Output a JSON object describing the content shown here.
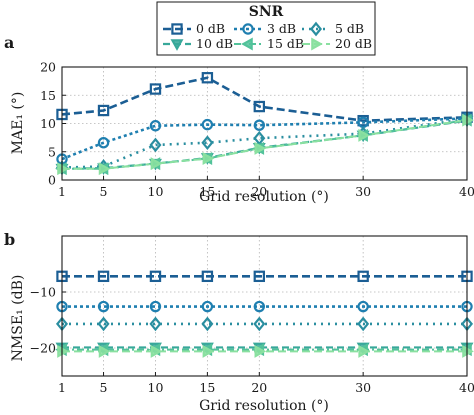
{
  "legend": {
    "title": "SNR",
    "colors": [
      "#1b5e94",
      "#1f7fb0",
      "#2a8ea0",
      "#38a89a",
      "#52c29a",
      "#8ae0a0"
    ],
    "markers": [
      "square",
      "circle",
      "diamond",
      "triangle-down",
      "triangle-left",
      "triangle-right"
    ]
  },
  "chart_data": [
    {
      "type": "line",
      "panel_label": "a",
      "ylabel": "MAE₁ (°)",
      "xlabel": "Grid resolution (°)",
      "x": [
        1,
        5,
        10,
        15,
        20,
        30,
        40
      ],
      "xticks": [
        "1",
        "5",
        "10",
        "15",
        "20",
        "30",
        "40"
      ],
      "ylim": [
        0,
        20
      ],
      "yticks": [
        0,
        5,
        10,
        15,
        20
      ],
      "ytick_labels": [
        "0",
        "5",
        "10",
        "15",
        "20"
      ],
      "grid": true,
      "series": [
        {
          "name": "0 dB",
          "values": [
            11.6,
            12.3,
            16.1,
            18.1,
            13.0,
            10.5,
            11.1
          ]
        },
        {
          "name": "3 dB",
          "values": [
            3.7,
            6.6,
            9.6,
            9.8,
            9.7,
            10.2,
            10.9
          ]
        },
        {
          "name": "5 dB",
          "values": [
            2.2,
            2.4,
            6.2,
            6.6,
            7.4,
            8.2,
            10.8
          ]
        },
        {
          "name": "10 dB",
          "values": [
            2.0,
            2.1,
            2.9,
            3.9,
            5.7,
            7.9,
            10.5
          ]
        },
        {
          "name": "15 dB",
          "values": [
            2.0,
            2.0,
            2.9,
            3.8,
            5.6,
            7.9,
            10.6
          ]
        },
        {
          "name": "20 dB",
          "values": [
            2.0,
            2.0,
            2.9,
            3.8,
            5.6,
            7.9,
            10.6
          ]
        }
      ]
    },
    {
      "type": "line",
      "panel_label": "b",
      "ylabel": "NMSE₁ (dB)",
      "xlabel": "Grid resolution (°)",
      "x": [
        1,
        5,
        10,
        15,
        20,
        30,
        40
      ],
      "xticks": [
        "1",
        "5",
        "10",
        "15",
        "20",
        "30",
        "40"
      ],
      "ylim": [
        -25,
        0
      ],
      "yticks": [
        -10,
        -20
      ],
      "ytick_labels": [
        "−10",
        "−20"
      ],
      "grid": true,
      "series": [
        {
          "name": "0 dB",
          "values": [
            -7.2,
            -7.2,
            -7.2,
            -7.2,
            -7.2,
            -7.2,
            -7.2
          ]
        },
        {
          "name": "3 dB",
          "values": [
            -12.6,
            -12.6,
            -12.6,
            -12.6,
            -12.6,
            -12.6,
            -12.6
          ]
        },
        {
          "name": "5 dB",
          "values": [
            -15.7,
            -15.7,
            -15.7,
            -15.7,
            -15.7,
            -15.7,
            -15.7
          ]
        },
        {
          "name": "10 dB",
          "values": [
            -19.9,
            -19.9,
            -19.9,
            -19.9,
            -19.9,
            -19.9,
            -19.9
          ]
        },
        {
          "name": "15 dB",
          "values": [
            -20.3,
            -20.3,
            -20.3,
            -20.3,
            -20.3,
            -20.3,
            -20.3
          ]
        },
        {
          "name": "20 dB",
          "values": [
            -20.6,
            -20.6,
            -20.6,
            -20.6,
            -20.6,
            -20.6,
            -20.6
          ]
        }
      ]
    }
  ]
}
